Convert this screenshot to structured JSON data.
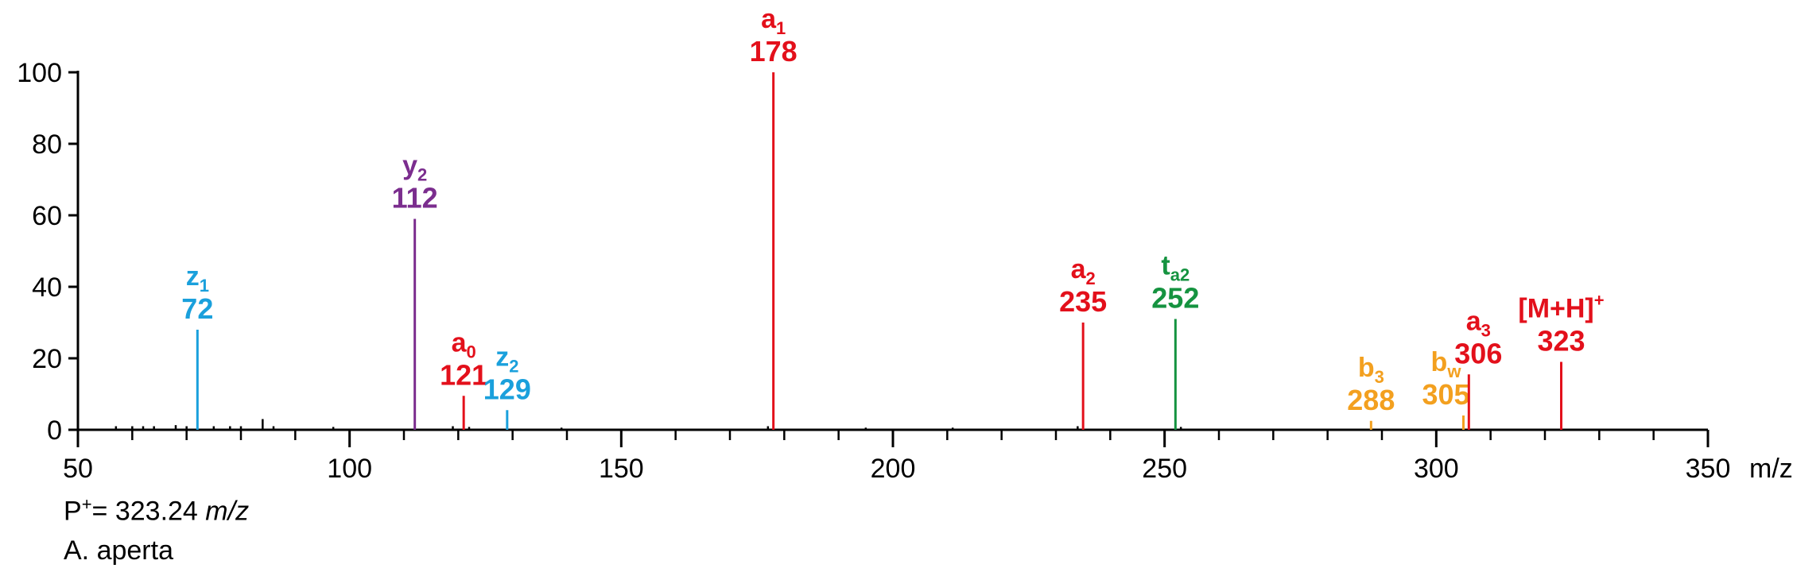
{
  "chart_data": {
    "type": "bar",
    "xlabel": "m/z",
    "ylabel": "",
    "xlim": [
      50,
      350
    ],
    "ylim": [
      0,
      100
    ],
    "x_ticks": [
      50,
      100,
      150,
      200,
      250,
      300,
      350
    ],
    "x_tick_labels": [
      "50",
      "100",
      "150",
      "200",
      "250",
      "300",
      "350"
    ],
    "y_ticks": [
      0,
      20,
      40,
      60,
      80,
      100
    ],
    "x_minor_step": 10,
    "colors": {
      "a": "#e3101b",
      "y": "#7b2d8e",
      "z": "#1aa0dc",
      "t": "#159340",
      "b": "#f3a01f",
      "noise": "#000000"
    },
    "labeled_peaks": [
      {
        "ion": "z",
        "sub": "1",
        "sup": "",
        "mz": 72,
        "label": "72",
        "intensity": 28,
        "color": "#1aa0dc"
      },
      {
        "ion": "y",
        "sub": "2",
        "sup": "",
        "mz": 112,
        "label": "112",
        "intensity": 59,
        "color": "#7b2d8e"
      },
      {
        "ion": "a",
        "sub": "0",
        "sup": "",
        "mz": 121,
        "label": "121",
        "intensity": 9.5,
        "color": "#e3101b"
      },
      {
        "ion": "z",
        "sub": "2",
        "sup": "",
        "mz": 129,
        "label": "129",
        "intensity": 5.5,
        "color": "#1aa0dc"
      },
      {
        "ion": "a",
        "sub": "1",
        "sup": "",
        "mz": 178,
        "label": "178",
        "intensity": 100,
        "color": "#e3101b"
      },
      {
        "ion": "a",
        "sub": "2",
        "sup": "",
        "mz": 235,
        "label": "235",
        "intensity": 30,
        "color": "#e3101b"
      },
      {
        "ion": "t",
        "sub": "a2",
        "sup": "",
        "mz": 252,
        "label": "252",
        "intensity": 31,
        "color": "#159340"
      },
      {
        "ion": "b",
        "sub": "3",
        "sup": "",
        "mz": 288,
        "label": "288",
        "intensity": 2.5,
        "color": "#f3a01f"
      },
      {
        "ion": "b",
        "sub": "w",
        "sup": "",
        "mz": 305,
        "label": "305",
        "intensity": 4,
        "color": "#f3a01f"
      },
      {
        "ion": "a",
        "sub": "3",
        "sup": "",
        "mz": 306,
        "label": "306",
        "intensity": 15.5,
        "color": "#e3101b"
      },
      {
        "ion": "[M+H]",
        "sub": "",
        "sup": "+",
        "mz": 323,
        "label": "323",
        "intensity": 19,
        "color": "#e3101b"
      }
    ],
    "noise_peaks": [
      {
        "mz": 57,
        "intensity": 1
      },
      {
        "mz": 60,
        "intensity": 1
      },
      {
        "mz": 62,
        "intensity": 1
      },
      {
        "mz": 64,
        "intensity": 1
      },
      {
        "mz": 68,
        "intensity": 1.3
      },
      {
        "mz": 70,
        "intensity": 1
      },
      {
        "mz": 75,
        "intensity": 1
      },
      {
        "mz": 78,
        "intensity": 1
      },
      {
        "mz": 80,
        "intensity": 1
      },
      {
        "mz": 84,
        "intensity": 3
      },
      {
        "mz": 86,
        "intensity": 1
      },
      {
        "mz": 97,
        "intensity": 0.8
      },
      {
        "mz": 119,
        "intensity": 1
      },
      {
        "mz": 122,
        "intensity": 0.8
      },
      {
        "mz": 139,
        "intensity": 0.6
      },
      {
        "mz": 177,
        "intensity": 1
      },
      {
        "mz": 195,
        "intensity": 0.6
      },
      {
        "mz": 211,
        "intensity": 0.6
      },
      {
        "mz": 234,
        "intensity": 1
      },
      {
        "mz": 253,
        "intensity": 0.8
      }
    ]
  },
  "footer": {
    "precursor_prefix": "P",
    "precursor_sup": "+",
    "precursor_value": "= 323.24 ",
    "precursor_unit": "m/z",
    "sample_name": "A. aperta"
  }
}
